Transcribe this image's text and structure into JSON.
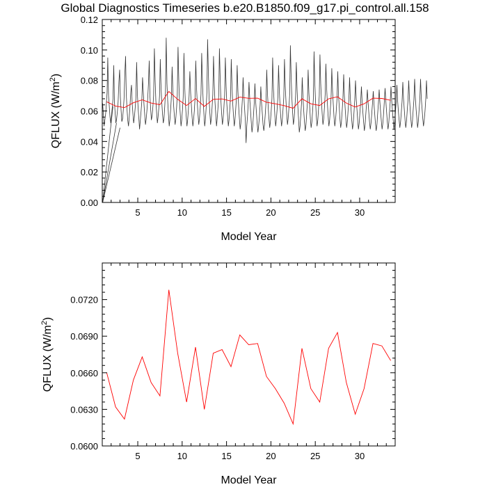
{
  "figure": {
    "title": "Global Diagnostics Timeseries b.e20.B1850.f09_g17.pi_control.all.158"
  },
  "colors": {
    "monthly": "#333333",
    "annual": "#ff0000",
    "axis": "#000000"
  },
  "chart_data": [
    {
      "type": "line",
      "xlabel": "Model Year",
      "ylabel_text": "QFLUX (W/m",
      "ylabel_sup": "2",
      "ylabel_close": ")",
      "xlim": [
        1,
        34
      ],
      "ylim": [
        0,
        0.12
      ],
      "xticks": [
        5,
        10,
        15,
        20,
        25,
        30
      ],
      "xtick_labels": [
        "5",
        "10",
        "15",
        "20",
        "25",
        "30"
      ],
      "yticks": [
        0,
        0.02,
        0.04,
        0.06,
        0.08,
        0.1,
        0.12
      ],
      "ytick_labels": [
        "0.00",
        "0.02",
        "0.04",
        "0.06",
        "0.08",
        "0.10",
        "0.12"
      ],
      "grid": false,
      "series": [
        {
          "style": "monthly",
          "x_start": 1.04,
          "x_step": 0.0833,
          "values": [
            0.065,
            0.058,
            0.05,
            0.054,
            0.058,
            0.064,
            0.072,
            0.095,
            0.07,
            0.063,
            0.056,
            0.052,
            0.057,
            0.062,
            0.068,
            0.09,
            0.066,
            0.058,
            0.052,
            0.055,
            0.06,
            0.066,
            0.079,
            0.087,
            0.069,
            0.06,
            0.053,
            0.055,
            0.061,
            0.068,
            0.084,
            0.096,
            0.071,
            0.061,
            0.054,
            0.05,
            0.056,
            0.063,
            0.072,
            0.077,
            0.065,
            0.058,
            0.052,
            0.056,
            0.062,
            0.068,
            0.092,
            0.071,
            0.062,
            0.055,
            0.048,
            0.054,
            0.06,
            0.066,
            0.082,
            0.072,
            0.064,
            0.057,
            0.051,
            0.055,
            0.061,
            0.068,
            0.078,
            0.093,
            0.07,
            0.061,
            0.054,
            0.057,
            0.063,
            0.07,
            0.101,
            0.08,
            0.067,
            0.059,
            0.052,
            0.056,
            0.062,
            0.07,
            0.094,
            0.075,
            0.066,
            0.058,
            0.052,
            0.055,
            0.063,
            0.072,
            0.108,
            0.078,
            0.067,
            0.058,
            0.05,
            0.054,
            0.061,
            0.069,
            0.089,
            0.073,
            0.064,
            0.057,
            0.051,
            0.055,
            0.062,
            0.07,
            0.102,
            0.08,
            0.066,
            0.058,
            0.05,
            0.054,
            0.061,
            0.069,
            0.098,
            0.076,
            0.065,
            0.057,
            0.05,
            0.054,
            0.061,
            0.07,
            0.086,
            0.072,
            0.064,
            0.056,
            0.05,
            0.054,
            0.06,
            0.068,
            0.093,
            0.075,
            0.066,
            0.058,
            0.051,
            0.055,
            0.062,
            0.071,
            0.098,
            0.079,
            0.067,
            0.058,
            0.05,
            0.054,
            0.062,
            0.072,
            0.107,
            0.085,
            0.069,
            0.059,
            0.051,
            0.055,
            0.062,
            0.071,
            0.096,
            0.077,
            0.066,
            0.058,
            0.05,
            0.055,
            0.062,
            0.07,
            0.101,
            0.081,
            0.067,
            0.058,
            0.051,
            0.055,
            0.062,
            0.071,
            0.095,
            0.076,
            0.065,
            0.057,
            0.05,
            0.054,
            0.061,
            0.07,
            0.094,
            0.076,
            0.065,
            0.057,
            0.05,
            0.054,
            0.061,
            0.069,
            0.09,
            0.073,
            0.063,
            0.055,
            0.048,
            0.052,
            0.059,
            0.068,
            0.082,
            0.07,
            0.062,
            0.054,
            0.039,
            0.05,
            0.057,
            0.066,
            0.079,
            0.068,
            0.06,
            0.053,
            0.046,
            0.05,
            0.057,
            0.065,
            0.078,
            0.066,
            0.059,
            0.052,
            0.046,
            0.05,
            0.056,
            0.064,
            0.076,
            0.065,
            0.058,
            0.051,
            0.047,
            0.051,
            0.058,
            0.066,
            0.087,
            0.071,
            0.062,
            0.055,
            0.049,
            0.053,
            0.06,
            0.068,
            0.095,
            0.075,
            0.065,
            0.057,
            0.05,
            0.054,
            0.061,
            0.069,
            0.09,
            0.073,
            0.063,
            0.056,
            0.05,
            0.054,
            0.061,
            0.069,
            0.094,
            0.076,
            0.066,
            0.058,
            0.051,
            0.055,
            0.062,
            0.071,
            0.103,
            0.082,
            0.068,
            0.059,
            0.051,
            0.055,
            0.062,
            0.07,
            0.092,
            0.074,
            0.063,
            0.055,
            0.046,
            0.05,
            0.057,
            0.065,
            0.082,
            0.069,
            0.06,
            0.053,
            0.047,
            0.051,
            0.058,
            0.066,
            0.087,
            0.072,
            0.063,
            0.055,
            0.049,
            0.053,
            0.06,
            0.068,
            0.099,
            0.078,
            0.066,
            0.057,
            0.05,
            0.054,
            0.061,
            0.07,
            0.097,
            0.078,
            0.066,
            0.058,
            0.051,
            0.055,
            0.062,
            0.071,
            0.091,
            0.075,
            0.065,
            0.057,
            0.05,
            0.054,
            0.061,
            0.069,
            0.088,
            0.073,
            0.064,
            0.056,
            0.05,
            0.054,
            0.06,
            0.068,
            0.086,
            0.071,
            0.063,
            0.055,
            0.049,
            0.053,
            0.06,
            0.068,
            0.084,
            0.07,
            0.062,
            0.055,
            0.049,
            0.053,
            0.06,
            0.067,
            0.082,
            0.069,
            0.061,
            0.054,
            0.048,
            0.052,
            0.059,
            0.067,
            0.08,
            0.068,
            0.061,
            0.054,
            0.048,
            0.052,
            0.059,
            0.066,
            0.076,
            0.066,
            0.059,
            0.053,
            0.047,
            0.051,
            0.058,
            0.065,
            0.074,
            0.066,
            0.059,
            0.053,
            0.048,
            0.052,
            0.058,
            0.065,
            0.073,
            0.065,
            0.058,
            0.052,
            0.047,
            0.051,
            0.058,
            0.065,
            0.074,
            0.066,
            0.059,
            0.053,
            0.048,
            0.052,
            0.058,
            0.066,
            0.075,
            0.067,
            0.06,
            0.053,
            0.048,
            0.052,
            0.059,
            0.066,
            0.076,
            0.067,
            0.06,
            0.054,
            0.048,
            0.052,
            0.059,
            0.066,
            0.077,
            0.067,
            0.06,
            0.054,
            0.049,
            0.053,
            0.059,
            0.066,
            0.079,
            0.068,
            0.061,
            0.054,
            0.049,
            0.053,
            0.06,
            0.067,
            0.08,
            0.069,
            0.061,
            0.054,
            0.049,
            0.053,
            0.06,
            0.067,
            0.081,
            0.069,
            0.061,
            0.055,
            0.049,
            0.053,
            0.06,
            0.067,
            0.081,
            0.069,
            0.062,
            0.055,
            0.05,
            0.054,
            0.06,
            0.067,
            0.08,
            0.068
          ]
        },
        {
          "style": "ramp",
          "x": [
            1.04,
            1.04,
            1.04
          ],
          "y": [
            0.0,
            0.0,
            0.0
          ],
          "to_x": [
            2.2,
            2.6,
            3.0
          ],
          "to_y": [
            0.063,
            0.052,
            0.049
          ]
        },
        {
          "style": "annual",
          "x": [
            1.5,
            2.5,
            3.5,
            4.5,
            5.5,
            6.5,
            7.5,
            8.5,
            9.5,
            10.5,
            11.5,
            12.5,
            13.5,
            14.5,
            15.5,
            16.5,
            17.5,
            18.5,
            19.5,
            20.5,
            21.5,
            22.5,
            23.5,
            24.5,
            25.5,
            26.5,
            27.5,
            28.5,
            29.5,
            30.5,
            31.5,
            32.5,
            33.5
          ],
          "values": [
            0.066,
            0.0632,
            0.0622,
            0.0654,
            0.0673,
            0.0652,
            0.0641,
            0.0728,
            0.0676,
            0.0636,
            0.0681,
            0.063,
            0.0676,
            0.0679,
            0.0665,
            0.0691,
            0.0683,
            0.0684,
            0.0657,
            0.0647,
            0.0635,
            0.0618,
            0.068,
            0.0647,
            0.0636,
            0.068,
            0.0693,
            0.0652,
            0.0626,
            0.0647,
            0.0684,
            0.0682,
            0.067
          ]
        }
      ]
    },
    {
      "type": "line",
      "xlabel": "Model Year",
      "ylabel_text": "QFLUX (W/m",
      "ylabel_sup": "2",
      "ylabel_close": ")",
      "xlim": [
        1,
        34
      ],
      "ylim": [
        0.06,
        0.075
      ],
      "xticks": [
        5,
        10,
        15,
        20,
        25,
        30
      ],
      "xtick_labels": [
        "5",
        "10",
        "15",
        "20",
        "25",
        "30"
      ],
      "yticks": [
        0.06,
        0.063,
        0.066,
        0.069,
        0.072
      ],
      "ytick_labels": [
        "0.0600",
        "0.0630",
        "0.0660",
        "0.0690",
        "0.0720"
      ],
      "grid": false,
      "series": [
        {
          "style": "annual",
          "x": [
            1.5,
            2.5,
            3.5,
            4.5,
            5.5,
            6.5,
            7.5,
            8.5,
            9.5,
            10.5,
            11.5,
            12.5,
            13.5,
            14.5,
            15.5,
            16.5,
            17.5,
            18.5,
            19.5,
            20.5,
            21.5,
            22.5,
            23.5,
            24.5,
            25.5,
            26.5,
            27.5,
            28.5,
            29.5,
            30.5,
            31.5,
            32.5,
            33.5
          ],
          "values": [
            0.066,
            0.0632,
            0.0622,
            0.0654,
            0.0673,
            0.0652,
            0.0641,
            0.0728,
            0.0676,
            0.0636,
            0.0681,
            0.063,
            0.0676,
            0.0679,
            0.0665,
            0.0691,
            0.0683,
            0.0684,
            0.0657,
            0.0647,
            0.0635,
            0.0618,
            0.068,
            0.0647,
            0.0636,
            0.068,
            0.0693,
            0.0652,
            0.0626,
            0.0647,
            0.0684,
            0.0682,
            0.067
          ]
        }
      ]
    }
  ]
}
